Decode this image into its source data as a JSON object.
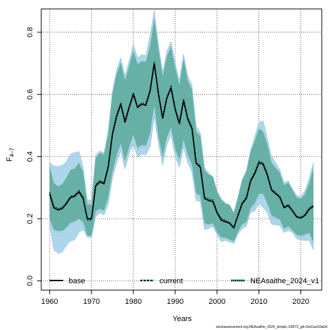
{
  "chart_data": {
    "type": "area",
    "title": "",
    "xlabel": "Years",
    "ylabel_main": "F",
    "ylabel_subscript": "4–7",
    "xlim": [
      1958,
      2025
    ],
    "ylim": [
      -0.03,
      0.875
    ],
    "xticks": [
      1960,
      1970,
      1980,
      1990,
      2000,
      2010,
      2020
    ],
    "yticks": [
      0.0,
      0.2,
      0.4,
      0.6,
      0.8
    ],
    "ytick_labels": [
      "0.0",
      "0.2",
      "0.4",
      "0.6",
      "0.8"
    ],
    "grid": true,
    "legend_position": "bottom",
    "colors": {
      "band_current": "#9fcfe8",
      "band_newrun": "#5aaa9a",
      "band_base": "#8e8e8e",
      "line": "#000000",
      "grid": "#000000"
    },
    "x": [
      1960,
      1961,
      1962,
      1963,
      1964,
      1965,
      1966,
      1967,
      1968,
      1969,
      1970,
      1971,
      1972,
      1973,
      1974,
      1975,
      1976,
      1977,
      1978,
      1979,
      1980,
      1981,
      1982,
      1983,
      1984,
      1985,
      1986,
      1987,
      1988,
      1989,
      1990,
      1991,
      1992,
      1993,
      1994,
      1995,
      1996,
      1997,
      1998,
      1999,
      2000,
      2001,
      2002,
      2003,
      2004,
      2005,
      2006,
      2007,
      2008,
      2009,
      2010,
      2011,
      2012,
      2013,
      2014,
      2015,
      2016,
      2017,
      2018,
      2019,
      2020,
      2021,
      2022,
      2023
    ],
    "series": [
      {
        "name": "base",
        "style": "solid",
        "values": [
          0.28,
          0.235,
          0.228,
          0.232,
          0.248,
          0.268,
          0.272,
          0.286,
          0.265,
          0.2,
          0.2,
          0.305,
          0.318,
          0.312,
          0.365,
          0.47,
          0.528,
          0.568,
          0.51,
          0.558,
          0.6,
          0.558,
          0.568,
          0.565,
          0.61,
          0.7,
          0.6,
          0.522,
          0.588,
          0.62,
          0.55,
          0.505,
          0.58,
          0.52,
          0.49,
          0.378,
          0.365,
          0.265,
          0.258,
          0.255,
          0.218,
          0.195,
          0.19,
          0.185,
          0.17,
          0.21,
          0.248,
          0.265,
          0.32,
          0.345,
          0.38,
          0.375,
          0.34,
          0.292,
          0.28,
          0.268,
          0.235,
          0.242,
          0.225,
          0.205,
          0.202,
          0.21,
          0.23,
          0.24
        ]
      },
      {
        "name": "current",
        "style": "dashed",
        "values": [
          0.28,
          0.235,
          0.228,
          0.232,
          0.248,
          0.268,
          0.272,
          0.286,
          0.265,
          0.2,
          0.2,
          0.305,
          0.318,
          0.312,
          0.365,
          0.47,
          0.528,
          0.568,
          0.51,
          0.558,
          0.6,
          0.558,
          0.568,
          0.565,
          0.61,
          0.7,
          0.6,
          0.522,
          0.588,
          0.62,
          0.55,
          0.505,
          0.58,
          0.52,
          0.49,
          0.378,
          0.365,
          0.265,
          0.258,
          0.255,
          0.218,
          0.195,
          0.19,
          0.185,
          0.17,
          0.21,
          0.248,
          0.265,
          0.32,
          0.345,
          0.38,
          0.375,
          0.34,
          0.292,
          0.28,
          0.268,
          0.235,
          0.242,
          0.225,
          0.205,
          0.202,
          0.21,
          0.23,
          0.24
        ]
      },
      {
        "name": "NEAsaithe_2024_v1",
        "style": "dotted",
        "values": [
          0.285,
          0.24,
          0.232,
          0.236,
          0.252,
          0.272,
          0.276,
          0.29,
          0.27,
          0.195,
          0.195,
          0.31,
          0.322,
          0.316,
          0.37,
          0.475,
          0.535,
          0.572,
          0.515,
          0.562,
          0.605,
          0.562,
          0.572,
          0.57,
          0.615,
          0.705,
          0.605,
          0.528,
          0.592,
          0.625,
          0.555,
          0.51,
          0.585,
          0.525,
          0.495,
          0.382,
          0.37,
          0.27,
          0.262,
          0.26,
          0.222,
          0.2,
          0.194,
          0.188,
          0.172,
          0.214,
          0.252,
          0.27,
          0.325,
          0.35,
          0.385,
          0.38,
          0.345,
          0.296,
          0.284,
          0.272,
          0.238,
          0.246,
          0.228,
          0.208,
          0.205,
          0.214,
          0.234,
          0.245
        ]
      }
    ],
    "band_half_width": {
      "current": [
        0.1,
        0.135,
        0.14,
        0.14,
        0.135,
        0.14,
        0.14,
        0.13,
        0.1,
        0.06,
        0.06,
        0.1,
        0.1,
        0.1,
        0.12,
        0.14,
        0.15,
        0.15,
        0.15,
        0.15,
        0.16,
        0.16,
        0.16,
        0.16,
        0.18,
        0.17,
        0.16,
        0.15,
        0.15,
        0.15,
        0.15,
        0.14,
        0.15,
        0.14,
        0.14,
        0.12,
        0.11,
        0.1,
        0.09,
        0.08,
        0.07,
        0.07,
        0.06,
        0.06,
        0.05,
        0.06,
        0.08,
        0.09,
        0.1,
        0.12,
        0.13,
        0.14,
        0.12,
        0.11,
        0.1,
        0.09,
        0.08,
        0.08,
        0.07,
        0.07,
        0.07,
        0.08,
        0.1,
        0.14
      ],
      "NEAsaithe_2024_v1": [
        0.085,
        0.075,
        0.072,
        0.075,
        0.08,
        0.085,
        0.085,
        0.09,
        0.08,
        0.05,
        0.05,
        0.085,
        0.09,
        0.09,
        0.1,
        0.125,
        0.13,
        0.13,
        0.13,
        0.13,
        0.135,
        0.135,
        0.135,
        0.135,
        0.14,
        0.14,
        0.14,
        0.13,
        0.13,
        0.13,
        0.13,
        0.12,
        0.13,
        0.12,
        0.12,
        0.1,
        0.095,
        0.085,
        0.08,
        0.075,
        0.065,
        0.06,
        0.055,
        0.055,
        0.045,
        0.055,
        0.07,
        0.08,
        0.09,
        0.1,
        0.105,
        0.1,
        0.095,
        0.085,
        0.08,
        0.075,
        0.07,
        0.07,
        0.065,
        0.06,
        0.06,
        0.065,
        0.08,
        0.12
      ]
    },
    "footnote": "stockassessment.org,NEAsaithe_2024_simple,r18572_git:c9c61ac53a0d"
  }
}
